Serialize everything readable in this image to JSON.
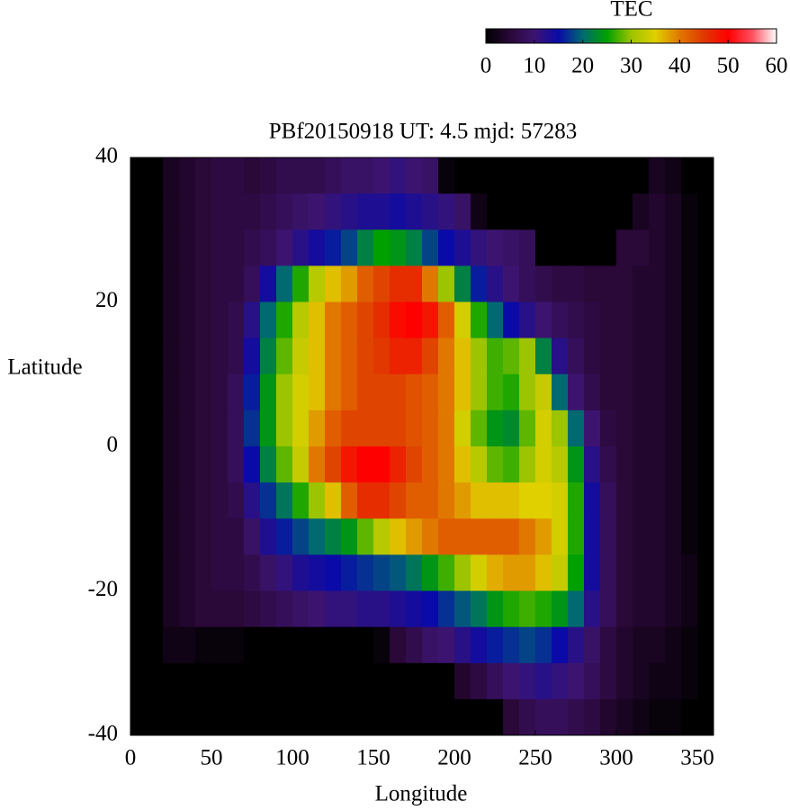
{
  "chart_data": {
    "type": "heatmap",
    "title": "PBf20150918  UT: 4.5  mjd: 57283",
    "xlabel": "Longitude",
    "ylabel": "Latitude",
    "colorbar_label": "TEC",
    "clim": [
      0,
      60
    ],
    "colorbar_ticks": [
      0,
      10,
      20,
      30,
      40,
      50,
      60
    ],
    "colormap": [
      "#000000",
      "#2a0838",
      "#3c1470",
      "#0a0aa8",
      "#006a70",
      "#00a000",
      "#9cc400",
      "#e0d000",
      "#e07800",
      "#e03800",
      "#ff0000",
      "#ff5060",
      "#ffffff"
    ],
    "xlim": [
      0,
      360
    ],
    "xticks": [
      0,
      50,
      100,
      150,
      200,
      250,
      300,
      350
    ],
    "ylim": [
      -40,
      40
    ],
    "yticks": [
      -40,
      -20,
      0,
      20,
      40
    ],
    "x": [
      5,
      15,
      25,
      35,
      45,
      55,
      65,
      75,
      85,
      95,
      105,
      115,
      125,
      135,
      145,
      155,
      165,
      175,
      185,
      195,
      205,
      215,
      225,
      235,
      245,
      255,
      265,
      275,
      285,
      295,
      305,
      315,
      325,
      335,
      345,
      355
    ],
    "y": [
      37.5,
      32.5,
      27.5,
      22.5,
      17.5,
      12.5,
      7.5,
      2.5,
      -2.5,
      -7.5,
      -12.5,
      -17.5,
      -22.5,
      -27.5,
      -32.5,
      -37.5
    ],
    "z": [
      [
        0,
        0,
        3,
        4,
        5,
        6,
        6,
        5,
        6,
        7,
        7,
        7,
        8,
        9,
        9,
        10,
        11,
        10,
        9,
        1,
        0,
        0,
        0,
        0,
        0,
        0,
        0,
        0,
        0,
        0,
        0,
        0,
        3,
        2,
        0,
        0
      ],
      [
        0,
        0,
        3,
        4,
        5,
        6,
        6,
        6,
        7,
        8,
        9,
        10,
        11,
        12,
        13,
        13,
        14,
        13,
        12,
        11,
        9,
        2,
        0,
        0,
        0,
        0,
        0,
        0,
        0,
        0,
        0,
        3,
        4,
        3,
        1,
        0
      ],
      [
        0,
        0,
        3,
        4,
        5,
        6,
        6,
        7,
        8,
        10,
        12,
        14,
        16,
        18,
        22,
        25,
        24,
        22,
        18,
        15,
        13,
        11,
        10,
        9,
        8,
        0,
        0,
        0,
        0,
        0,
        5,
        5,
        4,
        3,
        1,
        0
      ],
      [
        0,
        0,
        3,
        4,
        5,
        6,
        6,
        8,
        14,
        20,
        26,
        32,
        36,
        38,
        42,
        44,
        46,
        46,
        40,
        30,
        22,
        16,
        12,
        10,
        8,
        7,
        6,
        6,
        5,
        5,
        5,
        4,
        4,
        3,
        1,
        0
      ],
      [
        0,
        0,
        3,
        4,
        5,
        6,
        7,
        12,
        20,
        26,
        32,
        36,
        40,
        42,
        44,
        46,
        49,
        50,
        48,
        42,
        34,
        26,
        20,
        15,
        12,
        10,
        8,
        7,
        6,
        5,
        5,
        4,
        4,
        3,
        1,
        0
      ],
      [
        0,
        0,
        3,
        4,
        5,
        6,
        7,
        14,
        22,
        28,
        33,
        36,
        40,
        42,
        44,
        45,
        47,
        47,
        44,
        40,
        36,
        30,
        27,
        28,
        30,
        22,
        12,
        8,
        6,
        5,
        5,
        4,
        4,
        3,
        1,
        0
      ],
      [
        0,
        0,
        3,
        4,
        5,
        6,
        8,
        16,
        24,
        30,
        34,
        36,
        40,
        42,
        44,
        44,
        44,
        43,
        42,
        40,
        36,
        30,
        27,
        26,
        30,
        33,
        20,
        10,
        7,
        5,
        5,
        4,
        4,
        3,
        1,
        0
      ],
      [
        0,
        0,
        3,
        4,
        5,
        6,
        8,
        17,
        24,
        30,
        34,
        38,
        42,
        44,
        44,
        44,
        44,
        43,
        42,
        40,
        34,
        28,
        24,
        23,
        28,
        34,
        30,
        20,
        10,
        6,
        5,
        4,
        4,
        3,
        1,
        0
      ],
      [
        0,
        0,
        3,
        4,
        5,
        6,
        8,
        15,
        22,
        28,
        33,
        40,
        44,
        48,
        50,
        50,
        47,
        44,
        42,
        40,
        36,
        32,
        28,
        27,
        30,
        34,
        32,
        24,
        12,
        7,
        5,
        4,
        4,
        3,
        1,
        0
      ],
      [
        0,
        0,
        3,
        4,
        5,
        6,
        7,
        12,
        17,
        21,
        26,
        30,
        36,
        42,
        46,
        46,
        44,
        42,
        42,
        40,
        38,
        36,
        36,
        36,
        35,
        35,
        34,
        26,
        14,
        8,
        5,
        4,
        4,
        3,
        1,
        0
      ],
      [
        0,
        0,
        3,
        4,
        5,
        6,
        6,
        9,
        13,
        16,
        18,
        20,
        22,
        24,
        28,
        32,
        36,
        38,
        40,
        42,
        42,
        42,
        42,
        42,
        40,
        38,
        34,
        26,
        14,
        8,
        5,
        4,
        4,
        3,
        1,
        0
      ],
      [
        0,
        0,
        3,
        4,
        5,
        6,
        6,
        7,
        9,
        11,
        13,
        14,
        15,
        16,
        17,
        18,
        19,
        21,
        24,
        27,
        30,
        34,
        37,
        38,
        38,
        36,
        33,
        25,
        14,
        8,
        5,
        4,
        4,
        3,
        2,
        0
      ],
      [
        0,
        0,
        3,
        4,
        5,
        5,
        5,
        6,
        7,
        8,
        9,
        10,
        11,
        11,
        12,
        12,
        13,
        14,
        15,
        17,
        19,
        21,
        24,
        26,
        27,
        26,
        24,
        20,
        12,
        8,
        5,
        4,
        4,
        3,
        2,
        0
      ],
      [
        0,
        0,
        2,
        2,
        1,
        1,
        1,
        0,
        0,
        0,
        0,
        0,
        0,
        0,
        0,
        1,
        5,
        7,
        9,
        10,
        12,
        14,
        16,
        17,
        18,
        17,
        15,
        12,
        9,
        6,
        4,
        3,
        3,
        2,
        1,
        0
      ],
      [
        0,
        0,
        0,
        0,
        0,
        0,
        0,
        0,
        0,
        0,
        0,
        0,
        0,
        0,
        0,
        0,
        0,
        0,
        0,
        0,
        4,
        6,
        8,
        10,
        11,
        12,
        11,
        10,
        8,
        6,
        4,
        3,
        2,
        2,
        1,
        0
      ],
      [
        0,
        0,
        0,
        0,
        0,
        0,
        0,
        0,
        0,
        0,
        0,
        0,
        0,
        0,
        0,
        0,
        0,
        0,
        0,
        0,
        0,
        0,
        0,
        5,
        7,
        8,
        8,
        7,
        6,
        4,
        3,
        2,
        1,
        1,
        0,
        0
      ]
    ]
  }
}
